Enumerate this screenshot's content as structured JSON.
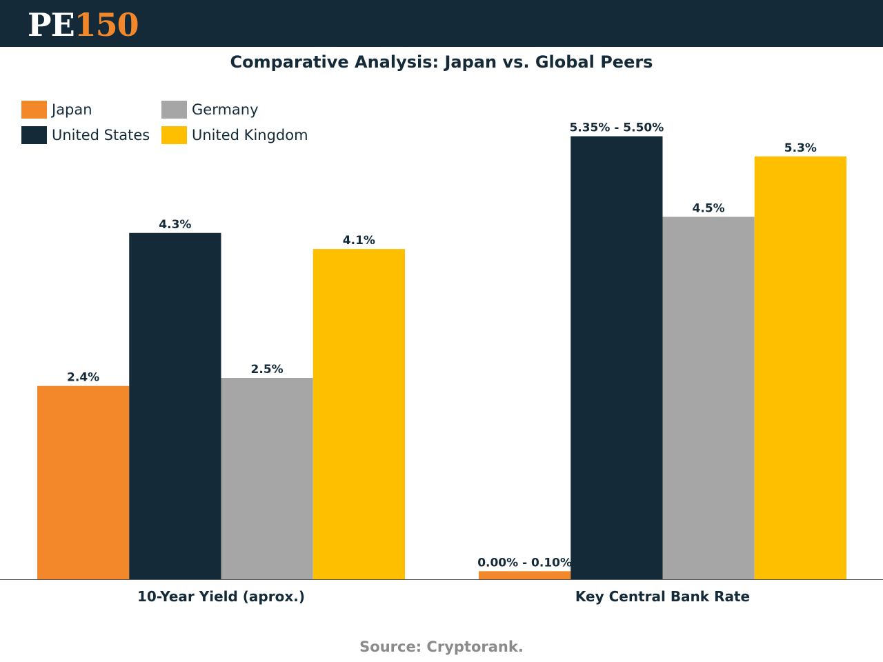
{
  "header": {
    "logo_pe": "PE",
    "logo_num": "150"
  },
  "title": "Comparative Analysis: Japan vs. Global Peers",
  "source": "Source: Cryptorank.",
  "colors": {
    "header_bg": "#142a38",
    "Japan": "#f2882a",
    "United States": "#142a38",
    "Germany": "#a6a6a6",
    "United Kingdom": "#fdbf00"
  },
  "legend": [
    {
      "name": "Japan",
      "color": "#f2882a"
    },
    {
      "name": "United States",
      "color": "#142a38"
    },
    {
      "name": "Germany",
      "color": "#a6a6a6"
    },
    {
      "name": "United Kingdom",
      "color": "#fdbf00"
    }
  ],
  "chart_data": {
    "type": "bar",
    "title": "Comparative Analysis: Japan vs. Global Peers",
    "categories": [
      "10-Year Yield (aprox.)",
      "Key Central Bank Rate"
    ],
    "series": [
      {
        "name": "Japan",
        "values": [
          2.4,
          0.1
        ],
        "labels": [
          "2.4%",
          "0.00% - 0.10%"
        ]
      },
      {
        "name": "United States",
        "values": [
          4.3,
          5.5
        ],
        "labels": [
          "4.3%",
          "5.35% - 5.50%"
        ]
      },
      {
        "name": "Germany",
        "values": [
          2.5,
          4.5
        ],
        "labels": [
          "2.5%",
          "4.5%"
        ]
      },
      {
        "name": "United Kingdom",
        "values": [
          4.1,
          5.25
        ],
        "labels": [
          "4.1%",
          "5.3%"
        ]
      }
    ],
    "ylim": [
      0,
      6.25
    ],
    "xlabel": "",
    "ylabel": "",
    "legend_position": "top-left",
    "grid": false
  }
}
